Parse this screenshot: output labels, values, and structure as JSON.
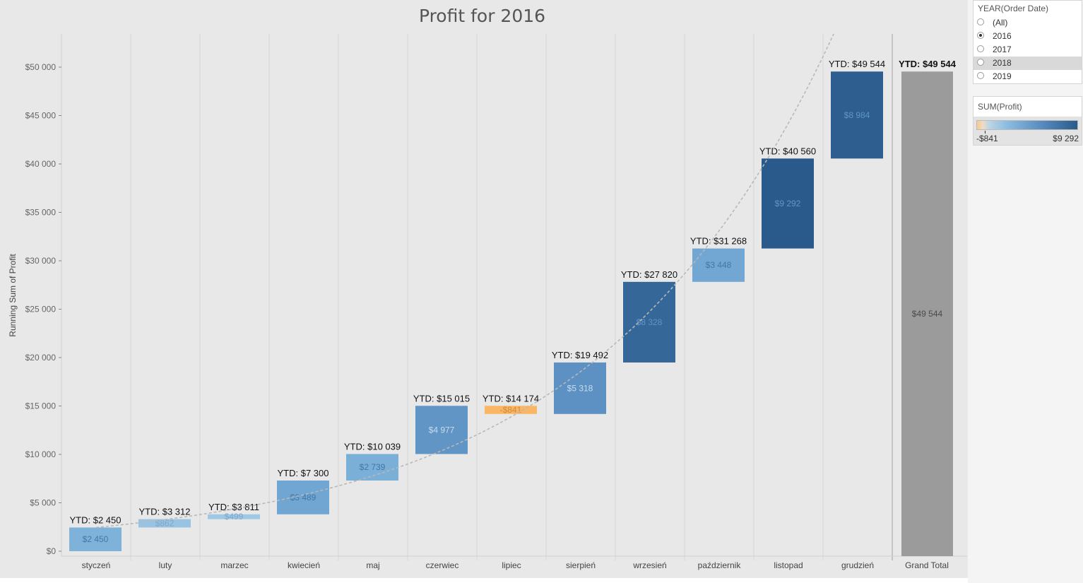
{
  "chart_data": {
    "type": "bar",
    "subtype": "waterfall",
    "title": "Profit for 2016",
    "ylabel": "Running Sum of Profit",
    "ylim": [
      -500,
      53000
    ],
    "yticks": [
      0,
      5000,
      10000,
      15000,
      20000,
      25000,
      30000,
      35000,
      40000,
      45000,
      50000
    ],
    "ytick_labels": [
      "$0",
      "$5 000",
      "$10 000",
      "$15 000",
      "$20 000",
      "$25 000",
      "$30 000",
      "$35 000",
      "$40 000",
      "$45 000",
      "$50 000"
    ],
    "categories": [
      "styczeń",
      "luty",
      "marzec",
      "kwiecień",
      "maj",
      "czerwiec",
      "lipiec",
      "sierpień",
      "wrzesień",
      "październik",
      "listopad",
      "grudzień",
      "Grand Total"
    ],
    "values": [
      2450,
      862,
      499,
      3489,
      2739,
      4977,
      -841,
      5318,
      8328,
      3448,
      9292,
      8984,
      49544
    ],
    "running_totals": [
      2450,
      3312,
      3811,
      7300,
      10039,
      15015,
      14174,
      19492,
      27820,
      31268,
      40560,
      49544,
      49544
    ],
    "value_labels": [
      "$2 450",
      "$862",
      "$499",
      "$3 489",
      "$2 739",
      "$4 977",
      "-$841",
      "$5 318",
      "$8 328",
      "$3 448",
      "$9 292",
      "$8 984",
      "$49 544"
    ],
    "ytd_labels": [
      "YTD: $2 450",
      "YTD: $3 312",
      "YTD: $3 811",
      "YTD: $7 300",
      "YTD: $10 039",
      "YTD: $15 015",
      "YTD: $14 174",
      "YTD: $19 492",
      "YTD: $27 820",
      "YTD: $31 268",
      "YTD: $40 560",
      "YTD: $49 544",
      "YTD: $49 544"
    ],
    "trend_line": "dashed exponential trend",
    "grid": "vertical lines between categories",
    "grand_total_color": "#9b9b9b"
  },
  "filter": {
    "title": "YEAR(Order Date)",
    "options": [
      "(All)",
      "2016",
      "2017",
      "2018",
      "2019"
    ],
    "selected": "2016",
    "highlighted": "2018"
  },
  "color_legend": {
    "title": "SUM(Profit)",
    "min_label": "-$841",
    "max_label": "$9 292",
    "min": -841,
    "max": 9292
  }
}
